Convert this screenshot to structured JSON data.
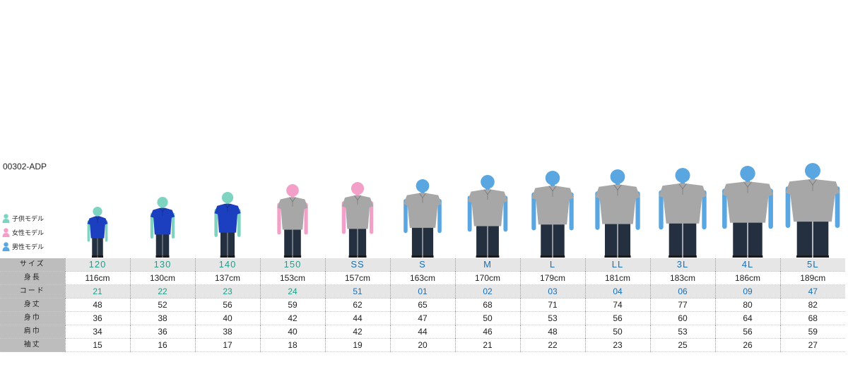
{
  "product_code": "00302-ADP",
  "legend": [
    {
      "label": "子供モデル",
      "color": "#7fd3c1",
      "icon": "child-model-icon"
    },
    {
      "label": "女性モデル",
      "color": "#f3a0c8",
      "icon": "female-model-icon"
    },
    {
      "label": "男性モデル",
      "color": "#5aa6e0",
      "icon": "male-model-icon"
    }
  ],
  "colors": {
    "child": "#7fd3c1",
    "female": "#f3a0c8",
    "male": "#5aa6e0",
    "royal_shirt": "#1c3fbf",
    "gray_shirt": "#a7a7a7",
    "pants": "#243040"
  },
  "row_headers": {
    "size": "サイズ",
    "height": "身長",
    "code": "コード",
    "length": "身丈",
    "chest": "身巾",
    "shoulder": "肩巾",
    "sleeve": "袖丈"
  },
  "sizes": [
    {
      "size": "120",
      "height": "116cm",
      "code": "21",
      "length": "48",
      "chest": "36",
      "shoulder": "34",
      "sleeve": "15",
      "group": "kid",
      "model": "child",
      "shirt": "royal"
    },
    {
      "size": "130",
      "height": "130cm",
      "code": "22",
      "length": "52",
      "chest": "38",
      "shoulder": "36",
      "sleeve": "16",
      "group": "kid",
      "model": "child",
      "shirt": "royal"
    },
    {
      "size": "140",
      "height": "137cm",
      "code": "23",
      "length": "56",
      "chest": "40",
      "shoulder": "38",
      "sleeve": "17",
      "group": "kid",
      "model": "child",
      "shirt": "royal"
    },
    {
      "size": "150",
      "height": "153cm",
      "code": "24",
      "length": "59",
      "chest": "42",
      "shoulder": "40",
      "sleeve": "18",
      "group": "kid",
      "model": "female",
      "shirt": "gray"
    },
    {
      "size": "SS",
      "height": "157cm",
      "code": "51",
      "length": "62",
      "chest": "44",
      "shoulder": "42",
      "sleeve": "19",
      "group": "men",
      "model": "female",
      "shirt": "gray"
    },
    {
      "size": "S",
      "height": "163cm",
      "code": "01",
      "length": "65",
      "chest": "47",
      "shoulder": "44",
      "sleeve": "20",
      "group": "men",
      "model": "male",
      "shirt": "gray"
    },
    {
      "size": "M",
      "height": "170cm",
      "code": "02",
      "length": "68",
      "chest": "50",
      "shoulder": "46",
      "sleeve": "21",
      "group": "men",
      "model": "male",
      "shirt": "gray"
    },
    {
      "size": "L",
      "height": "179cm",
      "code": "03",
      "length": "71",
      "chest": "53",
      "shoulder": "48",
      "sleeve": "22",
      "group": "men",
      "model": "male",
      "shirt": "gray"
    },
    {
      "size": "LL",
      "height": "181cm",
      "code": "04",
      "length": "74",
      "chest": "56",
      "shoulder": "50",
      "sleeve": "23",
      "group": "men",
      "model": "male",
      "shirt": "gray"
    },
    {
      "size": "3L",
      "height": "183cm",
      "code": "06",
      "length": "77",
      "chest": "60",
      "shoulder": "53",
      "sleeve": "25",
      "group": "men",
      "model": "male",
      "shirt": "gray"
    },
    {
      "size": "4L",
      "height": "186cm",
      "code": "09",
      "length": "80",
      "chest": "64",
      "shoulder": "56",
      "sleeve": "26",
      "group": "men",
      "model": "male",
      "shirt": "gray"
    },
    {
      "size": "5L",
      "height": "189cm",
      "code": "47",
      "length": "82",
      "chest": "68",
      "shoulder": "59",
      "sleeve": "27",
      "group": "men",
      "model": "male",
      "shirt": "gray"
    }
  ]
}
